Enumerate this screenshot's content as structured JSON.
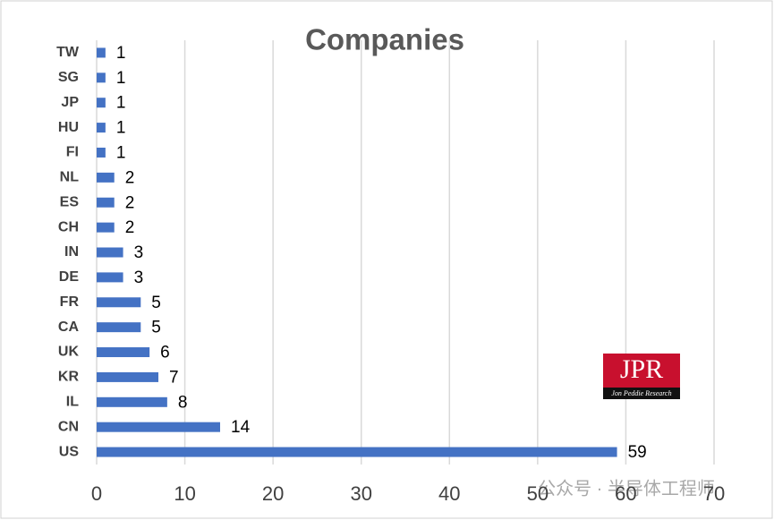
{
  "chart_data": {
    "type": "bar",
    "orientation": "horizontal",
    "title": "Companies",
    "categories": [
      "TW",
      "SG",
      "JP",
      "HU",
      "FI",
      "NL",
      "ES",
      "CH",
      "IN",
      "DE",
      "FR",
      "CA",
      "UK",
      "KR",
      "IL",
      "CN",
      "US"
    ],
    "values": [
      1,
      1,
      1,
      1,
      1,
      2,
      2,
      2,
      3,
      3,
      5,
      5,
      6,
      7,
      8,
      14,
      59
    ],
    "color": "#4472c4",
    "xlim": [
      0,
      70
    ],
    "xticks": [
      0,
      10,
      20,
      30,
      40,
      50,
      60,
      70
    ],
    "grid": true
  },
  "logo": {
    "title": "JPR",
    "subtitle": "Jon Peddie Research"
  },
  "watermark": "公众号 · 半导体工程师"
}
